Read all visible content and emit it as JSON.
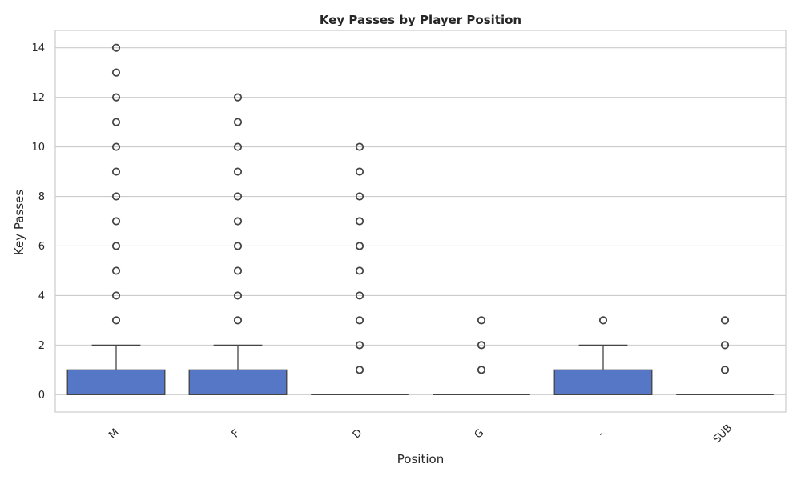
{
  "chart_data": {
    "type": "box",
    "title": "Key Passes by Player Position",
    "xlabel": "Position",
    "ylabel": "Key Passes",
    "ylim": [
      -0.7,
      14.7
    ],
    "yticks": [
      0,
      2,
      4,
      6,
      8,
      10,
      12,
      14
    ],
    "grid": "horizontal",
    "box_color": "#5577c5",
    "categories": [
      "M",
      "F",
      "D",
      "G",
      "-",
      "SUB"
    ],
    "boxes": [
      {
        "category": "M",
        "min": 0,
        "q1": 0,
        "median": 0,
        "q3": 1,
        "max": 2,
        "outliers": [
          3,
          4,
          5,
          6,
          7,
          8,
          9,
          10,
          11,
          12,
          13,
          14
        ]
      },
      {
        "category": "F",
        "min": 0,
        "q1": 0,
        "median": 0,
        "q3": 1,
        "max": 2,
        "outliers": [
          3,
          4,
          5,
          6,
          7,
          8,
          9,
          10,
          11,
          12
        ]
      },
      {
        "category": "D",
        "min": 0,
        "q1": 0,
        "median": 0,
        "q3": 0,
        "max": 0,
        "outliers": [
          1,
          2,
          3,
          4,
          5,
          6,
          7,
          8,
          9,
          10
        ]
      },
      {
        "category": "G",
        "min": 0,
        "q1": 0,
        "median": 0,
        "q3": 0,
        "max": 0,
        "outliers": [
          1,
          2,
          3
        ]
      },
      {
        "category": "-",
        "min": 0,
        "q1": 0,
        "median": 0,
        "q3": 1,
        "max": 2,
        "outliers": [
          3
        ]
      },
      {
        "category": "SUB",
        "min": 0,
        "q1": 0,
        "median": 0,
        "q3": 0,
        "max": 0,
        "outliers": [
          1,
          2,
          3
        ]
      }
    ]
  }
}
